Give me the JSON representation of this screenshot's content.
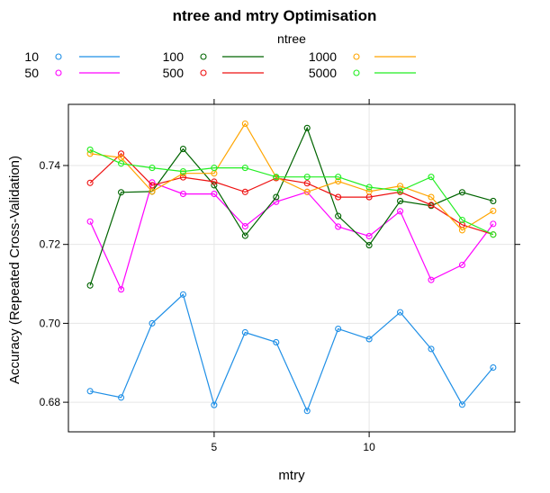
{
  "chart_data": {
    "type": "line",
    "title": "ntree and mtry Optimisation",
    "xlabel": "mtry",
    "ylabel": "Accuracy (Repeated Cross-Validation)",
    "legend_title": "ntree",
    "legend_position": "top",
    "grid": true,
    "xlim": [
      0.3,
      14.7
    ],
    "ylim": [
      0.6725,
      0.7555
    ],
    "x_ticks": [
      5,
      10
    ],
    "y_ticks": [
      0.68,
      0.7,
      0.72,
      0.74
    ],
    "x_tick_labels": [
      "5",
      "10"
    ],
    "y_tick_labels": [
      "0.68",
      "0.70",
      "0.72",
      "0.74"
    ],
    "x": [
      1,
      2,
      3,
      4,
      5,
      6,
      7,
      8,
      9,
      10,
      11,
      12,
      13,
      14
    ],
    "series": [
      {
        "name": "10",
        "color": "#1f8fe6",
        "values": [
          0.6828,
          0.6812,
          0.7,
          0.7073,
          0.6793,
          0.6977,
          0.6952,
          0.6778,
          0.6986,
          0.696,
          0.7028,
          0.6935,
          0.6794,
          0.6888
        ]
      },
      {
        "name": "50",
        "color": "#ff00ff",
        "values": [
          0.7258,
          0.7086,
          0.7357,
          0.7328,
          0.7328,
          0.7246,
          0.7308,
          0.7333,
          0.7245,
          0.7221,
          0.7284,
          0.711,
          0.7148,
          0.7252
        ]
      },
      {
        "name": "100",
        "color": "#006400",
        "values": [
          0.7096,
          0.7332,
          0.7334,
          0.7442,
          0.735,
          0.7222,
          0.732,
          0.7495,
          0.7272,
          0.7198,
          0.731,
          0.7298,
          0.7332,
          0.731
        ]
      },
      {
        "name": "500",
        "color": "#ee1111",
        "values": [
          0.7356,
          0.743,
          0.735,
          0.737,
          0.7359,
          0.7333,
          0.7368,
          0.7355,
          0.732,
          0.732,
          0.7333,
          0.73,
          0.725,
          0.7225
        ]
      },
      {
        "name": "1000",
        "color": "#ffa500",
        "values": [
          0.743,
          0.742,
          0.7334,
          0.738,
          0.738,
          0.7506,
          0.737,
          0.7333,
          0.736,
          0.7334,
          0.7348,
          0.732,
          0.7236,
          0.7285
        ]
      },
      {
        "name": "5000",
        "color": "#22ee22",
        "values": [
          0.744,
          0.7405,
          0.7394,
          0.7385,
          0.7394,
          0.7394,
          0.7371,
          0.7371,
          0.7371,
          0.7345,
          0.7336,
          0.7371,
          0.7262,
          0.7225
        ]
      }
    ]
  }
}
